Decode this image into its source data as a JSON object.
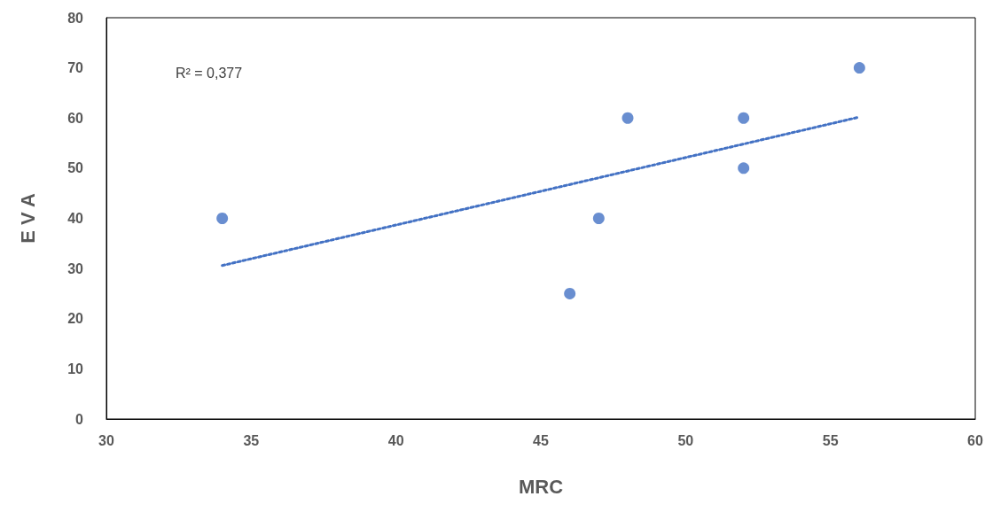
{
  "chart_data": {
    "type": "scatter",
    "xlabel": "MRC",
    "ylabel": "E V A",
    "annotations": [
      "R² = 0,377"
    ],
    "series": [
      {
        "color": "#4472c4",
        "x": [
          34,
          46,
          47,
          48,
          52,
          52,
          56
        ],
        "values": [
          40,
          25,
          40,
          60,
          60,
          50,
          70
        ],
        "marker": "circle"
      },
      {
        "type": "line",
        "color": "#4472c4",
        "x": [
          34,
          56
        ],
        "values": [
          30.6,
          60.2
        ],
        "line_style": "dotted",
        "marker": "none"
      }
    ],
    "xlim": [
      30,
      60
    ],
    "xticks": [
      30,
      35,
      40,
      45,
      50,
      55,
      60
    ],
    "ylim": [
      0,
      80
    ],
    "yticks": [
      0,
      10,
      20,
      30,
      40,
      50,
      60,
      70,
      80
    ],
    "grid": false
  }
}
